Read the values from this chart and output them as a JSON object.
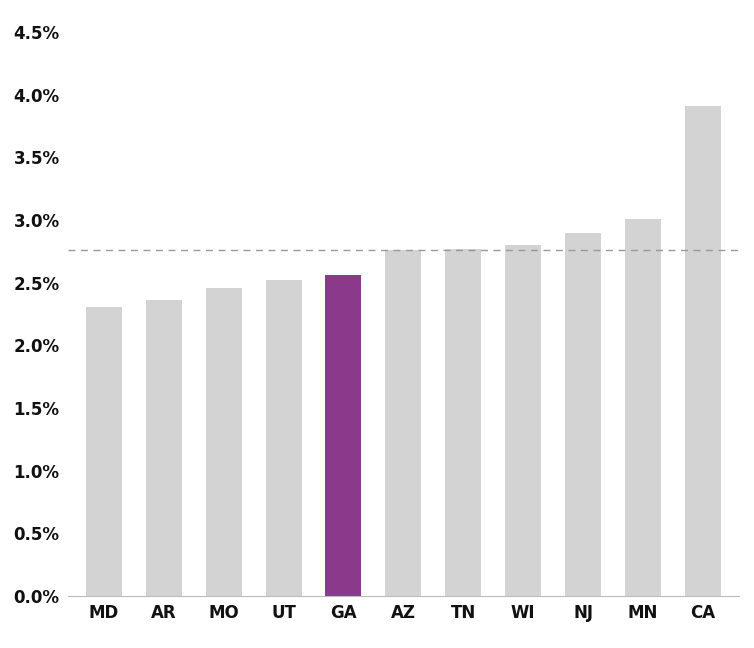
{
  "categories": [
    "MD",
    "AR",
    "MO",
    "UT",
    "GA",
    "AZ",
    "TN",
    "WI",
    "NJ",
    "MN",
    "CA"
  ],
  "values": [
    0.0231,
    0.0236,
    0.0246,
    0.0252,
    0.0256,
    0.0276,
    0.0277,
    0.028,
    0.029,
    0.0301,
    0.0391
  ],
  "bar_colors": [
    "#d3d3d3",
    "#d3d3d3",
    "#d3d3d3",
    "#d3d3d3",
    "#8b3a8b",
    "#d3d3d3",
    "#d3d3d3",
    "#d3d3d3",
    "#d3d3d3",
    "#d3d3d3",
    "#d3d3d3"
  ],
  "dashed_line_y": 0.0276,
  "dashed_line_color": "#999999",
  "ylim": [
    0,
    0.046
  ],
  "yticks": [
    0.0,
    0.005,
    0.01,
    0.015,
    0.02,
    0.025,
    0.03,
    0.035,
    0.04,
    0.045
  ],
  "background_color": "#ffffff",
  "bar_width": 0.6
}
